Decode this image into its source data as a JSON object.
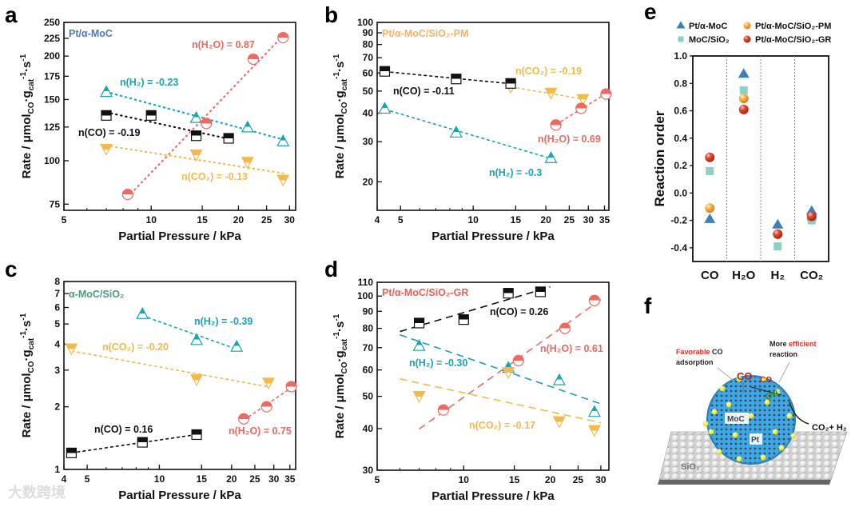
{
  "colors": {
    "CO": "#111111",
    "H2": "#1aa3b0",
    "H2O": "#ec6a62",
    "CO2": "#f3b94c"
  },
  "chart_data": [
    {
      "id": "a",
      "type": "scatter",
      "panel_letter": "a",
      "title": "Pt/α-MoC",
      "title_color": "#4a7ab8",
      "xlabel": "Partial Pressure / kPa",
      "ylabel": [
        {
          "t": "Rate / μmol"
        },
        {
          "sub": "CO"
        },
        {
          "t": "·g"
        },
        {
          "sub": "cat"
        },
        {
          "sup": "-1"
        },
        {
          "t": "·s"
        },
        {
          "sup": "-1"
        }
      ],
      "xscale": "log",
      "yscale": "log",
      "xlim": [
        5,
        31.5
      ],
      "ylim": [
        72,
        250
      ],
      "xticks": [
        5,
        10,
        15,
        20,
        25,
        30
      ],
      "yticks": [
        75,
        100,
        125,
        150,
        175,
        200,
        225,
        250
      ],
      "fit_style": "dotted",
      "series": [
        {
          "key": "H2",
          "label": "n(H₂) = -0.23",
          "marker": "triangle-up",
          "x": [
            7,
            14.3,
            21.5,
            28.5
          ],
          "y": [
            158,
            133,
            125,
            114
          ]
        },
        {
          "key": "CO",
          "label": "n(CO) = -0.19",
          "marker": "square",
          "x": [
            7,
            10,
            14.3,
            18.5
          ],
          "y": [
            135,
            135,
            118,
            116
          ]
        },
        {
          "key": "CO2",
          "label": "n(CO₂) = -0.13",
          "marker": "triangle-down",
          "x": [
            7,
            14.3,
            21.5,
            28.5
          ],
          "y": [
            108,
            104,
            99,
            88
          ]
        },
        {
          "key": "H2O",
          "label": "n(H₂O) = 0.87",
          "marker": "circle",
          "x": [
            8.3,
            15.5,
            22.5,
            28.5
          ],
          "y": [
            80,
            128,
            196,
            226
          ]
        }
      ]
    },
    {
      "id": "b",
      "type": "scatter",
      "panel_letter": "b",
      "title": "Pt/α-MoC/SiO₂-PM",
      "title_color": "#f5b36a",
      "xlabel": "Partial Pressure / kPa",
      "ylabel": [
        {
          "t": "Rate / μmol"
        },
        {
          "sub": "CO"
        },
        {
          "t": "·g"
        },
        {
          "sub": "cat"
        },
        {
          "sup": "-1"
        },
        {
          "t": "·s"
        },
        {
          "sup": "-1"
        }
      ],
      "xscale": "log",
      "yscale": "log",
      "xlim": [
        4,
        36.5
      ],
      "ylim": [
        15,
        100
      ],
      "xticks": [
        4,
        5,
        10,
        15,
        20,
        25,
        30,
        35
      ],
      "yticks": [
        20,
        30,
        40,
        50,
        60,
        70,
        80,
        90,
        100
      ],
      "fit_style": "dashed",
      "series": [
        {
          "key": "CO2",
          "label": "n(CO₂) = -0.19",
          "marker": "triangle-down",
          "x": [
            14.3,
            21,
            28.5
          ],
          "y": [
            52,
            49,
            46
          ]
        },
        {
          "key": "CO",
          "label": "n(CO) = -0.11",
          "marker": "square",
          "x": [
            4.3,
            8.5,
            14.3
          ],
          "y": [
            61,
            56.5,
            54
          ]
        },
        {
          "key": "H2O",
          "label": "n(H₂O) = 0.69",
          "marker": "circle",
          "x": [
            22,
            28,
            35.5
          ],
          "y": [
            35.5,
            42,
            48.5
          ]
        },
        {
          "key": "H2",
          "label": "n(H₂) = -0.3",
          "marker": "triangle-up",
          "x": [
            4.3,
            8.5,
            21
          ],
          "y": [
            42,
            33,
            25.5
          ]
        }
      ]
    },
    {
      "id": "c",
      "type": "scatter",
      "panel_letter": "c",
      "title": "α-MoC/SiO₂",
      "title_color": "#4f9a80",
      "xlabel": "Partial Pressure / kPa",
      "ylabel": [
        {
          "t": "Rate / μmol"
        },
        {
          "sub": "CO"
        },
        {
          "t": "·g"
        },
        {
          "sub": "cat"
        },
        {
          "sup": "-1"
        },
        {
          "t": "·s"
        },
        {
          "sup": "-1"
        }
      ],
      "xscale": "log",
      "yscale": "log",
      "xlim": [
        4,
        37
      ],
      "ylim": [
        1,
        8
      ],
      "xticks": [
        4,
        5,
        10,
        15,
        20,
        25,
        30,
        35
      ],
      "yticks": [
        1,
        2,
        3,
        4,
        5,
        6,
        7,
        8
      ],
      "fit_style": "dashed",
      "series": [
        {
          "key": "H2",
          "label": "n(H₂) = -0.39",
          "marker": "triangle-up",
          "x": [
            8.5,
            14.3,
            21
          ],
          "y": [
            5.6,
            4.2,
            3.9
          ]
        },
        {
          "key": "CO2",
          "label": "n(CO₂) = -0.20",
          "marker": "triangle-down",
          "x": [
            4.3,
            14.3,
            28.5
          ],
          "y": [
            3.8,
            2.7,
            2.6
          ]
        },
        {
          "key": "CO",
          "label": "n(CO) = 0.16",
          "marker": "square",
          "x": [
            4.3,
            8.5,
            14.3
          ],
          "y": [
            1.2,
            1.35,
            1.47
          ]
        },
        {
          "key": "H2O",
          "label": "n(H₂O) = 0.75",
          "marker": "circle",
          "x": [
            22.5,
            28,
            35.5
          ],
          "y": [
            1.75,
            2.0,
            2.5
          ]
        }
      ]
    },
    {
      "id": "d",
      "type": "scatter",
      "panel_letter": "d",
      "title": "Pt/α-MoC/SiO₂-GR",
      "title_color": "#e8605a",
      "xlabel": "Partial Pressure / kPa",
      "ylabel": [
        {
          "t": "Rate / μmol"
        },
        {
          "sub": "CO"
        },
        {
          "t": "·g"
        },
        {
          "sub": "cat"
        },
        {
          "sup": "-1"
        },
        {
          "t": "·s"
        },
        {
          "sup": "-1"
        }
      ],
      "xscale": "log",
      "yscale": "log",
      "xlim": [
        5,
        32
      ],
      "ylim": [
        30,
        110
      ],
      "xticks": [
        5,
        10,
        15,
        20,
        25,
        30
      ],
      "yticks": [
        30,
        40,
        50,
        60,
        70,
        80,
        90,
        100,
        110
      ],
      "fit_style": "longdash",
      "fit_xrange": [
        6,
        30
      ],
      "series": [
        {
          "key": "CO",
          "label": "n(CO) = 0.26",
          "marker": "square",
          "x": [
            7,
            10,
            14.3,
            18.5
          ],
          "y": [
            83,
            85,
            102,
            103
          ],
          "fit_xrange": [
            6,
            20
          ]
        },
        {
          "key": "H2O",
          "label": "n(H₂O) = 0.61",
          "marker": "circle",
          "x": [
            8.5,
            15.5,
            22.5,
            28.5
          ],
          "y": [
            45.5,
            64,
            80,
            97
          ],
          "fit_xrange": [
            7,
            30
          ]
        },
        {
          "key": "H2",
          "label": "n(H₂) = -0.30",
          "marker": "triangle-up",
          "x": [
            7,
            14.3,
            21.5,
            28.5
          ],
          "y": [
            71,
            61,
            56,
            45
          ],
          "fit_xrange": [
            6,
            30
          ]
        },
        {
          "key": "CO2",
          "label": "n(CO₂) = -0.17",
          "marker": "triangle-down",
          "x": [
            7,
            14.3,
            21.5,
            28.5
          ],
          "y": [
            50,
            59,
            42,
            39.5
          ],
          "fit_xrange": [
            6,
            30
          ]
        }
      ]
    },
    {
      "id": "e",
      "type": "scatter",
      "panel_letter": "e",
      "ylabel": "Reaction order",
      "categories": [
        "CO",
        "H₂O",
        "H₂",
        "CO₂"
      ],
      "ylim": [
        -0.5,
        1.0
      ],
      "yticks": [
        "1.0",
        "0.8",
        "0.6",
        "0.4",
        "0.2",
        "0.0",
        "-0.2",
        "-0.4"
      ],
      "legend_position": "top",
      "series": [
        {
          "name": "Pt/α-MoC",
          "marker": "triangle",
          "color": "#3d7fb8",
          "values": [
            -0.19,
            0.87,
            -0.23,
            -0.13
          ]
        },
        {
          "name": "Pt/α-MoC/SiO₂-PM",
          "marker": "sphere",
          "color": "#f5a83a",
          "values": [
            -0.11,
            0.69,
            -0.3,
            -0.19
          ]
        },
        {
          "name": "MoC/SiO₂",
          "marker": "square",
          "color": "#8fd0c4",
          "values": [
            0.16,
            0.75,
            -0.39,
            -0.2
          ]
        },
        {
          "name": "Pt/α-MoC/SiO₂-GR",
          "marker": "sphere",
          "color": "#e0442e",
          "values": [
            0.26,
            0.61,
            -0.3,
            -0.17
          ]
        }
      ]
    }
  ],
  "panel_f": {
    "letter": "f",
    "favorable": "Favorable",
    "co_adsorption": " CO",
    "adsorption": "adsorption",
    "more": "More ",
    "efficient": "efficient",
    "reaction": "reaction",
    "co_big": "CO",
    "co_small": "CO",
    "oh": "OH",
    "products": "CO₂+ H₂",
    "moc": "MoC",
    "pt": "Pt",
    "sio2": "SiO₂"
  },
  "watermark": "大数跨境"
}
